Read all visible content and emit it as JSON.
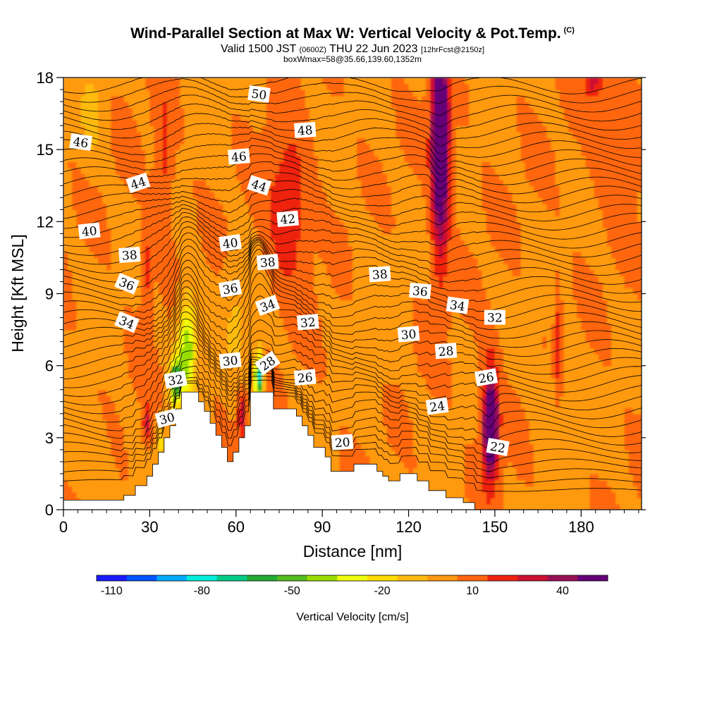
{
  "header": {
    "title": "Wind-Parallel Section at Max W: Vertical Velocity & Pot.Temp.",
    "copyright": "(C)",
    "valid_prefix": "Valid 1500 JST",
    "valid_z": "(0600Z)",
    "valid_date": "THU 22 Jun 2023",
    "forecast": "[12hrFcst@2150z]",
    "box_info": "boxWmax=58@35.66,139.60,1352m"
  },
  "chart_data": {
    "type": "heatmap",
    "xlabel": "Distance [nm]",
    "ylabel": "Height [Kft MSL]",
    "xlim": [
      0,
      201
    ],
    "ylim": [
      0,
      18
    ],
    "x_ticks": [
      "0",
      "30",
      "60",
      "90",
      "120",
      "150",
      "180"
    ],
    "y_ticks": [
      "0",
      "3",
      "6",
      "9",
      "12",
      "15",
      "18"
    ],
    "colorbar": {
      "label": "Vertical Velocity [cm/s]",
      "tick_labels": [
        "-110",
        "-80",
        "-50",
        "-20",
        "10",
        "40"
      ],
      "tick_values": [
        -110,
        -80,
        -50,
        -20,
        10,
        40
      ],
      "min": -115,
      "max": 55,
      "step": 10,
      "colors": [
        "#1a1aff",
        "#0055ff",
        "#00aaff",
        "#00eedd",
        "#00cc88",
        "#22aa33",
        "#55bb22",
        "#99dd00",
        "#eeff11",
        "#ffdd00",
        "#ffbb11",
        "#ff9911",
        "#ff6611",
        "#ee2211",
        "#cc1133",
        "#991155",
        "#660077"
      ]
    },
    "terrain_profile_kft": [
      [
        0,
        0.4
      ],
      [
        21,
        0.4
      ],
      [
        21,
        0.6
      ],
      [
        25,
        0.6
      ],
      [
        25,
        1
      ],
      [
        29,
        1
      ],
      [
        29,
        1.4
      ],
      [
        31,
        1.4
      ],
      [
        31,
        1.9
      ],
      [
        33,
        1.9
      ],
      [
        33,
        2.4
      ],
      [
        35,
        2.4
      ],
      [
        35,
        3
      ],
      [
        37,
        3
      ],
      [
        37,
        3.5
      ],
      [
        39,
        3.5
      ],
      [
        39,
        4.2
      ],
      [
        41,
        4.2
      ],
      [
        41,
        4.9
      ],
      [
        47,
        4.9
      ],
      [
        47,
        4.5
      ],
      [
        49,
        4.5
      ],
      [
        49,
        4.1
      ],
      [
        51,
        4.1
      ],
      [
        51,
        3.6
      ],
      [
        53,
        3.6
      ],
      [
        53,
        3.1
      ],
      [
        55,
        3.1
      ],
      [
        55,
        2.6
      ],
      [
        57,
        2.6
      ],
      [
        57,
        2
      ],
      [
        59,
        2
      ],
      [
        59,
        2.4
      ],
      [
        61,
        2.4
      ],
      [
        61,
        3
      ],
      [
        63,
        3
      ],
      [
        63,
        3.5
      ],
      [
        65,
        3.5
      ],
      [
        65,
        4.9
      ],
      [
        73,
        4.9
      ],
      [
        73,
        4.2
      ],
      [
        81,
        4.2
      ],
      [
        81,
        3.9
      ],
      [
        83,
        3.9
      ],
      [
        83,
        3.5
      ],
      [
        85,
        3.5
      ],
      [
        85,
        3.1
      ],
      [
        87,
        3.1
      ],
      [
        87,
        2.6
      ],
      [
        91,
        2.6
      ],
      [
        91,
        2.2
      ],
      [
        93,
        2.2
      ],
      [
        93,
        1.6
      ],
      [
        101,
        1.6
      ],
      [
        101,
        1.9
      ],
      [
        109,
        1.9
      ],
      [
        109,
        1.6
      ],
      [
        111,
        1.6
      ],
      [
        111,
        1.4
      ],
      [
        113,
        1.4
      ],
      [
        113,
        1.2
      ],
      [
        117,
        1.2
      ],
      [
        117,
        1.5
      ],
      [
        123,
        1.5
      ],
      [
        123,
        1.2
      ],
      [
        127,
        1.2
      ],
      [
        127,
        0.8
      ],
      [
        133,
        0.8
      ],
      [
        133,
        0.5
      ],
      [
        139,
        0.5
      ],
      [
        139,
        0.3
      ],
      [
        143,
        0.3
      ],
      [
        143,
        0
      ],
      [
        201,
        0
      ]
    ],
    "w_features": [
      {
        "x": 131,
        "z": 15.8,
        "rx": 2.8,
        "rz": 3.2,
        "w": 55
      },
      {
        "x": 131,
        "z": 14,
        "rx": 3,
        "rz": 4.5,
        "w": 35
      },
      {
        "x": 148.5,
        "z": 3.4,
        "rx": 2.3,
        "rz": 1.6,
        "w": 55
      },
      {
        "x": 148.5,
        "z": 3.8,
        "rx": 3,
        "rz": 2.8,
        "w": 30
      },
      {
        "x": 78,
        "z": 12.5,
        "rx": 7,
        "rz": 3,
        "w": 22
      },
      {
        "x": 29,
        "z": 3.6,
        "rx": 1.5,
        "rz": 0.9,
        "w": 25
      },
      {
        "x": 62,
        "z": 4,
        "rx": 1.5,
        "rz": 1,
        "w": 28
      },
      {
        "x": 43,
        "z": 6.8,
        "rx": 3,
        "rz": 2,
        "w": -50
      },
      {
        "x": 39,
        "z": 5.4,
        "rx": 2,
        "rz": 1,
        "w": -65
      },
      {
        "x": 68,
        "z": 5.6,
        "rx": 1.5,
        "rz": 0.9,
        "w": -85
      },
      {
        "x": 34,
        "z": 2.8,
        "rx": 1.5,
        "rz": 0.8,
        "w": -20
      },
      {
        "x": 35,
        "z": 14.5,
        "rx": 3,
        "rz": 3,
        "w": 15
      },
      {
        "x": 29,
        "z": 10,
        "rx": 2,
        "rz": 2,
        "w": 16
      },
      {
        "x": 184,
        "z": 17.8,
        "rx": 3,
        "rz": 0.5,
        "w": 25
      },
      {
        "x": 192,
        "z": 15.5,
        "rx": 8,
        "rz": 2.5,
        "w": 12
      },
      {
        "x": 10,
        "z": 16.5,
        "rx": 4,
        "rz": 2,
        "w": -12
      },
      {
        "x": 8,
        "z": 2.5,
        "rx": 8,
        "rz": 2,
        "w": -8
      },
      {
        "x": 172,
        "z": 4,
        "rx": 8,
        "rz": 3,
        "w": -6
      },
      {
        "x": 60,
        "z": 8,
        "rx": 4,
        "rz": 3,
        "w": -10
      },
      {
        "x": 172,
        "z": 7,
        "rx": 1.2,
        "rz": 2.5,
        "w": 18
      },
      {
        "x": 108,
        "z": 8,
        "rx": 8,
        "rz": 4,
        "w": -4
      }
    ],
    "theta_labels": [
      {
        "text": "50",
        "x": 68,
        "z": 17.3,
        "rot": 8
      },
      {
        "text": "48",
        "x": 84,
        "z": 15.8,
        "rot": -4
      },
      {
        "text": "46",
        "x": 6,
        "z": 15.3,
        "rot": 8
      },
      {
        "text": "46",
        "x": 61,
        "z": 14.7,
        "rot": -5
      },
      {
        "text": "44",
        "x": 26,
        "z": 13.6,
        "rot": -18
      },
      {
        "text": "44",
        "x": 68,
        "z": 13.5,
        "rot": 18
      },
      {
        "text": "42",
        "x": 78,
        "z": 12.1,
        "rot": -5
      },
      {
        "text": "40",
        "x": 9,
        "z": 11.6,
        "rot": -6
      },
      {
        "text": "40",
        "x": 58,
        "z": 11.1,
        "rot": -8
      },
      {
        "text": "38",
        "x": 23,
        "z": 10.6,
        "rot": -4
      },
      {
        "text": "38",
        "x": 71,
        "z": 10.3,
        "rot": -5
      },
      {
        "text": "38",
        "x": 110,
        "z": 9.8,
        "rot": -4
      },
      {
        "text": "36",
        "x": 22,
        "z": 9.4,
        "rot": 22
      },
      {
        "text": "36",
        "x": 58,
        "z": 9.2,
        "rot": -10
      },
      {
        "text": "36",
        "x": 124,
        "z": 9.1,
        "rot": 5
      },
      {
        "text": "34",
        "x": 22,
        "z": 7.8,
        "rot": 22
      },
      {
        "text": "34",
        "x": 71,
        "z": 8.5,
        "rot": -20
      },
      {
        "text": "34",
        "x": 137,
        "z": 8.5,
        "rot": 8
      },
      {
        "text": "32",
        "x": 85,
        "z": 7.8,
        "rot": -5
      },
      {
        "text": "32",
        "x": 150,
        "z": 8,
        "rot": 0
      },
      {
        "text": "32",
        "x": 39,
        "z": 5.4,
        "rot": -10
      },
      {
        "text": "30",
        "x": 58,
        "z": 6.2,
        "rot": -6
      },
      {
        "text": "30",
        "x": 120,
        "z": 7.3,
        "rot": -5
      },
      {
        "text": "30",
        "x": 36,
        "z": 3.8,
        "rot": -15
      },
      {
        "text": "28",
        "x": 71,
        "z": 6.1,
        "rot": -35
      },
      {
        "text": "28",
        "x": 133,
        "z": 6.6,
        "rot": -4
      },
      {
        "text": "26",
        "x": 84,
        "z": 5.5,
        "rot": -5
      },
      {
        "text": "26",
        "x": 147,
        "z": 5.5,
        "rot": -10
      },
      {
        "text": "24",
        "x": 130,
        "z": 4.3,
        "rot": -8
      },
      {
        "text": "22",
        "x": 151,
        "z": 2.6,
        "rot": 10
      },
      {
        "text": "20",
        "x": 97,
        "z": 2.8,
        "rot": -4
      }
    ]
  }
}
